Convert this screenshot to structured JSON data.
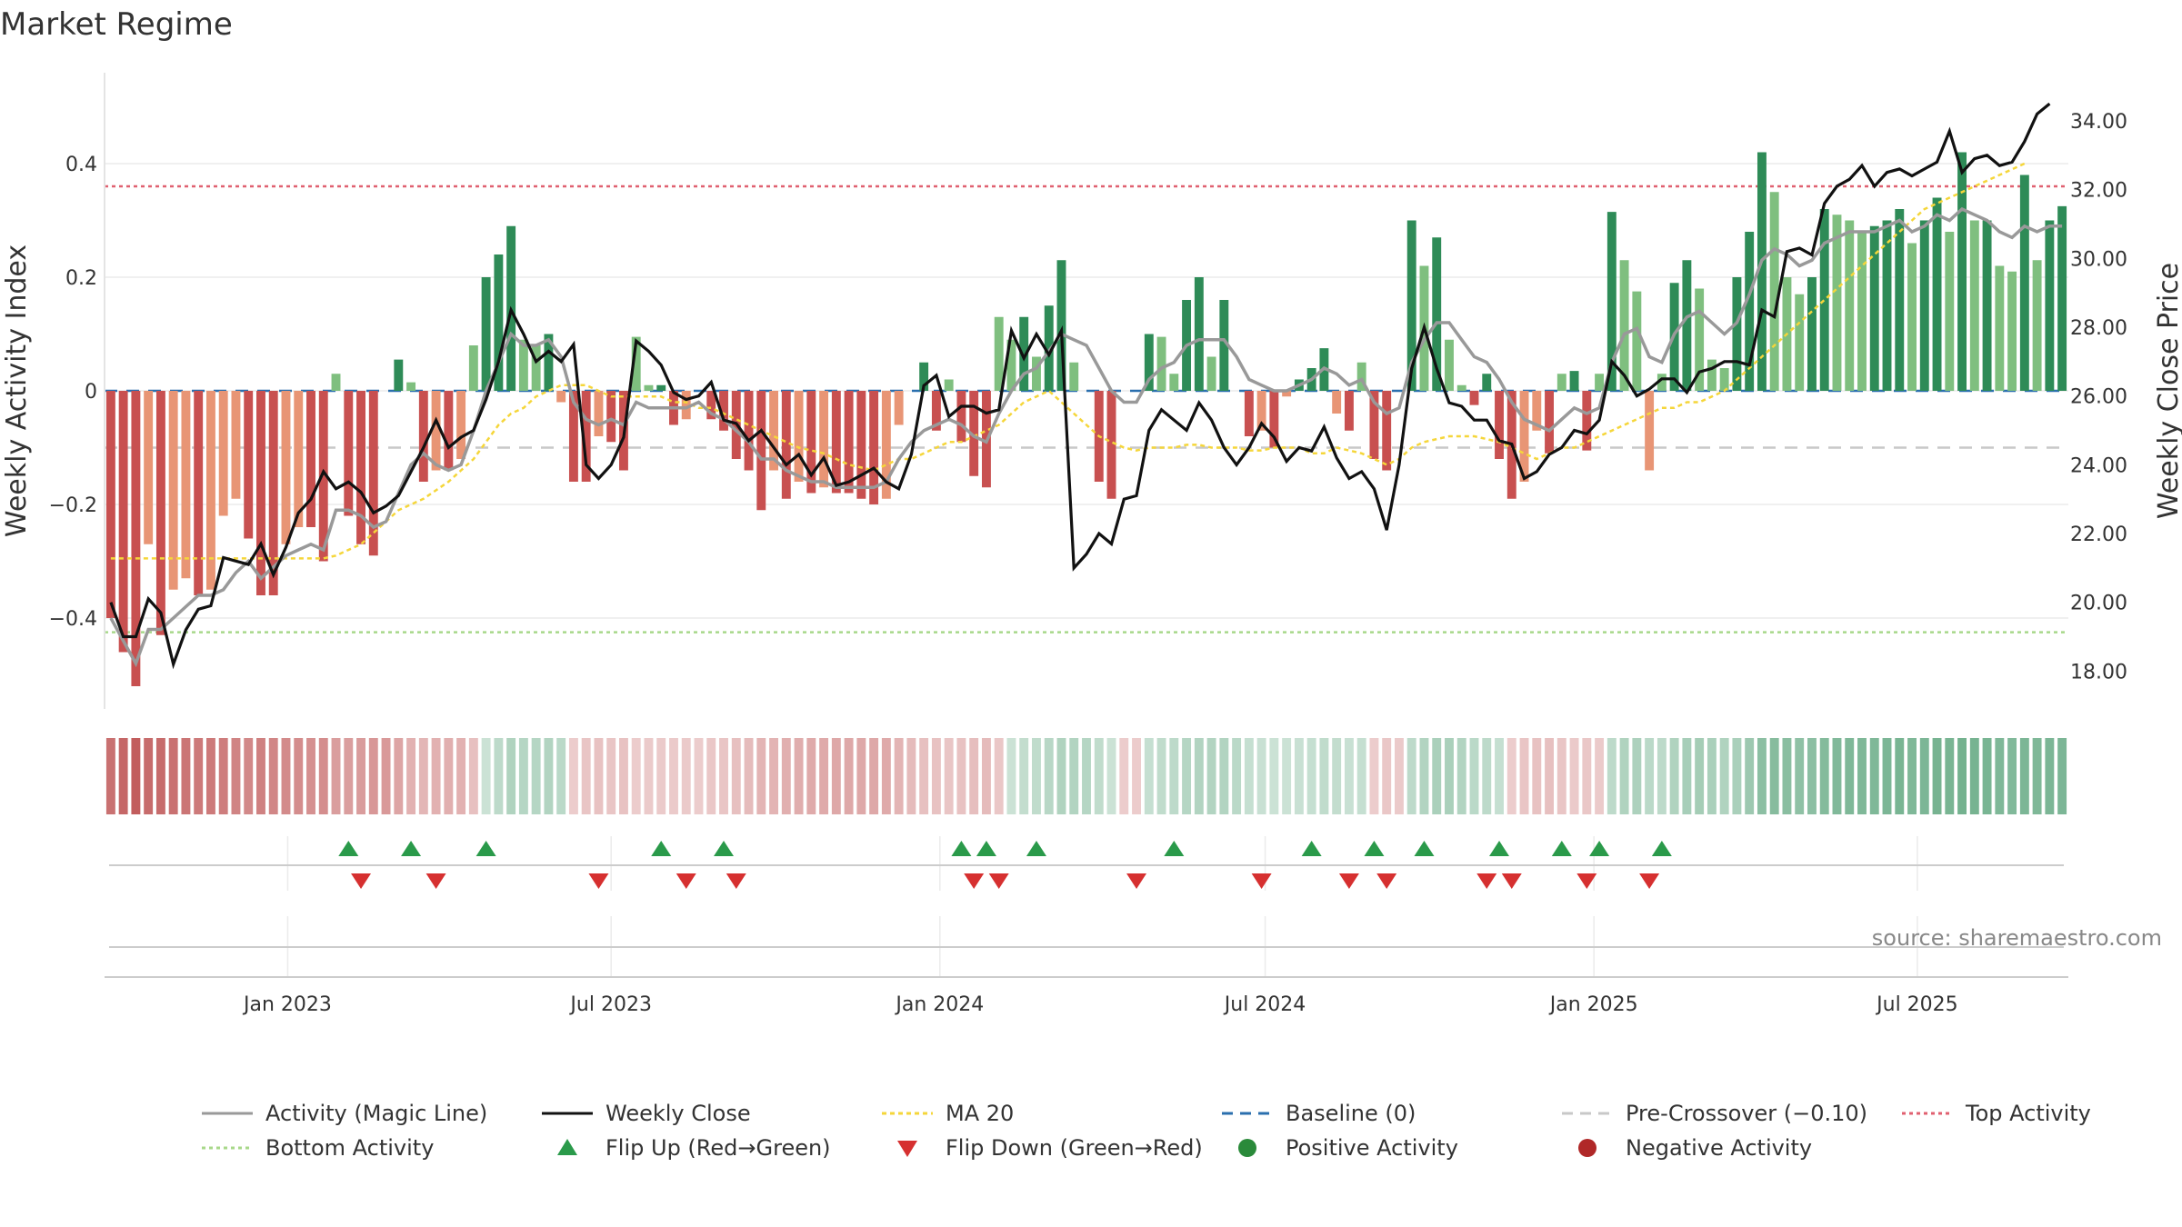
{
  "chart_data": {
    "type": "bar",
    "title": "Market Regime",
    "ylabel_left": "Weekly Activity Index",
    "ylabel_right": "Weekly Close Price",
    "source": "source: sharemaestro.com",
    "x_start": "2022-09-24",
    "x_step_days": 7,
    "ylim_left": [
      -0.56,
      0.56
    ],
    "ylim_right": [
      16.9,
      35.4
    ],
    "yticks_left": [
      {
        "value": 0.4,
        "label": "0.4"
      },
      {
        "value": 0.2,
        "label": "0.2"
      },
      {
        "value": 0,
        "label": "0"
      },
      {
        "value": -0.2,
        "label": "−0.2"
      },
      {
        "value": -0.4,
        "label": "−0.4"
      }
    ],
    "yticks_right": [
      {
        "value": 34,
        "label": "34.00"
      },
      {
        "value": 32,
        "label": "32.00"
      },
      {
        "value": 30,
        "label": "30.00"
      },
      {
        "value": 28,
        "label": "28.00"
      },
      {
        "value": 26,
        "label": "26.00"
      },
      {
        "value": 24,
        "label": "24.00"
      },
      {
        "value": 22,
        "label": "22.00"
      },
      {
        "value": 20,
        "label": "20.00"
      },
      {
        "value": 18,
        "label": "18.00"
      }
    ],
    "xticks": [
      {
        "date": "2023-01-01",
        "label": "Jan 2023"
      },
      {
        "date": "2023-07-01",
        "label": "Jul 2023"
      },
      {
        "date": "2024-01-01",
        "label": "Jan 2024"
      },
      {
        "date": "2024-07-01",
        "label": "Jul 2024"
      },
      {
        "date": "2025-01-01",
        "label": "Jan 2025"
      },
      {
        "date": "2025-07-01",
        "label": "Jul 2025"
      }
    ],
    "reference_lines": {
      "baseline": 0,
      "pre_crossover": -0.1,
      "top_activity": 0.36,
      "bottom_activity": -0.425
    },
    "activity_bars": [
      -0.4,
      -0.46,
      -0.52,
      -0.27,
      -0.43,
      -0.35,
      -0.33,
      -0.36,
      -0.35,
      -0.22,
      -0.19,
      -0.26,
      -0.36,
      -0.36,
      -0.27,
      -0.24,
      -0.24,
      -0.3,
      0.03,
      -0.22,
      -0.27,
      -0.29,
      0.0,
      0.055,
      0.015,
      -0.16,
      -0.14,
      -0.14,
      -0.12,
      0.08,
      0.2,
      0.24,
      0.29,
      0.09,
      0.08,
      0.1,
      -0.02,
      -0.16,
      -0.16,
      -0.08,
      -0.09,
      -0.14,
      0.095,
      0.01,
      0.01,
      -0.06,
      -0.05,
      0.0,
      -0.05,
      -0.07,
      -0.12,
      -0.14,
      -0.21,
      -0.14,
      -0.19,
      -0.16,
      -0.18,
      -0.17,
      -0.18,
      -0.18,
      -0.19,
      -0.2,
      -0.19,
      -0.06,
      0.0,
      0.05,
      -0.07,
      0.02,
      -0.09,
      -0.15,
      -0.17,
      0.13,
      0.09,
      0.13,
      0.06,
      0.15,
      0.23,
      0.05,
      0.0,
      -0.16,
      -0.19,
      0.0,
      0.0,
      0.1,
      0.095,
      0.03,
      0.16,
      0.2,
      0.06,
      0.16,
      0.0,
      -0.08,
      -0.07,
      -0.1,
      -0.01,
      0.02,
      0.04,
      0.075,
      -0.04,
      -0.07,
      0.05,
      -0.12,
      -0.14,
      0.0,
      0.3,
      0.22,
      0.27,
      0.09,
      0.01,
      -0.025,
      0.03,
      -0.12,
      -0.19,
      -0.16,
      -0.07,
      -0.11,
      0.03,
      0.035,
      -0.105,
      0.03,
      0.315,
      0.23,
      0.175,
      -0.14,
      0.03,
      0.19,
      0.23,
      0.18,
      0.055,
      0.04,
      0.2,
      0.28,
      0.42,
      0.35,
      0.2,
      0.17,
      0.2,
      0.32,
      0.31,
      0.3,
      0.28,
      0.29,
      0.3,
      0.32,
      0.26,
      0.3,
      0.34,
      0.28,
      0.42,
      0.3,
      0.3,
      0.22,
      0.21,
      0.38,
      0.23,
      0.3,
      0.325
    ],
    "magic_line": [
      -0.4,
      -0.44,
      -0.48,
      -0.42,
      -0.42,
      -0.4,
      -0.38,
      -0.36,
      -0.36,
      -0.35,
      -0.32,
      -0.3,
      -0.33,
      -0.31,
      -0.29,
      -0.28,
      -0.27,
      -0.28,
      -0.21,
      -0.21,
      -0.22,
      -0.24,
      -0.23,
      -0.18,
      -0.13,
      -0.11,
      -0.13,
      -0.14,
      -0.13,
      -0.07,
      0.0,
      0.05,
      0.1,
      0.08,
      0.08,
      0.09,
      0.06,
      -0.02,
      -0.05,
      -0.06,
      -0.05,
      -0.06,
      -0.02,
      -0.03,
      -0.03,
      -0.03,
      -0.03,
      -0.02,
      -0.04,
      -0.05,
      -0.07,
      -0.09,
      -0.12,
      -0.12,
      -0.14,
      -0.15,
      -0.16,
      -0.16,
      -0.17,
      -0.17,
      -0.17,
      -0.17,
      -0.16,
      -0.12,
      -0.09,
      -0.07,
      -0.06,
      -0.05,
      -0.06,
      -0.08,
      -0.09,
      -0.04,
      0.0,
      0.03,
      0.04,
      0.07,
      0.1,
      0.09,
      0.08,
      0.04,
      0.0,
      -0.02,
      -0.02,
      0.02,
      0.04,
      0.05,
      0.08,
      0.09,
      0.09,
      0.09,
      0.06,
      0.02,
      0.01,
      0.0,
      0.0,
      0.01,
      0.02,
      0.04,
      0.03,
      0.01,
      0.02,
      -0.02,
      -0.04,
      -0.03,
      0.05,
      0.09,
      0.12,
      0.12,
      0.09,
      0.06,
      0.05,
      0.02,
      -0.02,
      -0.05,
      -0.06,
      -0.07,
      -0.05,
      -0.03,
      -0.04,
      -0.03,
      0.05,
      0.1,
      0.11,
      0.06,
      0.05,
      0.1,
      0.13,
      0.14,
      0.12,
      0.1,
      0.12,
      0.17,
      0.23,
      0.25,
      0.24,
      0.22,
      0.23,
      0.26,
      0.27,
      0.28,
      0.28,
      0.28,
      0.29,
      0.3,
      0.28,
      0.29,
      0.31,
      0.3,
      0.32,
      0.31,
      0.3,
      0.28,
      0.27,
      0.29,
      0.28,
      0.29,
      0.29
    ],
    "weekly_close": [
      20.0,
      19.0,
      19.0,
      20.1,
      19.7,
      18.2,
      19.2,
      19.8,
      19.9,
      21.3,
      21.2,
      21.1,
      21.7,
      20.8,
      21.6,
      22.6,
      23.0,
      23.8,
      23.3,
      23.5,
      23.2,
      22.6,
      22.8,
      23.1,
      23.8,
      24.5,
      25.3,
      24.5,
      24.8,
      25.0,
      25.9,
      27.0,
      28.5,
      27.8,
      27.0,
      27.3,
      27.0,
      27.5,
      24.0,
      23.6,
      24.0,
      24.8,
      27.6,
      27.3,
      26.9,
      26.1,
      25.9,
      26.0,
      26.4,
      25.3,
      25.2,
      24.7,
      25.0,
      24.5,
      24.0,
      24.3,
      23.7,
      24.2,
      23.4,
      23.5,
      23.7,
      23.9,
      23.5,
      23.3,
      24.3,
      26.3,
      26.6,
      25.4,
      25.7,
      25.7,
      25.5,
      25.6,
      27.9,
      27.1,
      27.8,
      27.2,
      27.9,
      21.0,
      21.4,
      22.0,
      21.7,
      23.0,
      23.1,
      25.0,
      25.6,
      25.3,
      25.0,
      25.8,
      25.3,
      24.5,
      24.0,
      24.5,
      25.2,
      24.8,
      24.1,
      24.5,
      24.4,
      25.1,
      24.2,
      23.6,
      23.8,
      23.3,
      22.1,
      24.0,
      26.8,
      28.0,
      26.8,
      25.8,
      25.7,
      25.3,
      25.3,
      24.7,
      24.6,
      23.6,
      23.8,
      24.3,
      24.5,
      25.0,
      24.9,
      25.3,
      27.0,
      26.6,
      26.0,
      26.2,
      26.5,
      26.5,
      26.1,
      26.7,
      26.8,
      27.0,
      27.0,
      26.9,
      28.5,
      28.3,
      30.2,
      30.3,
      30.1,
      31.6,
      32.1,
      32.3,
      32.7,
      32.1,
      32.5,
      32.6,
      32.4,
      32.6,
      32.8,
      33.7,
      32.5,
      32.9,
      33.0,
      32.7,
      32.8,
      33.4,
      34.2,
      34.5
    ],
    "ma20": [
      -0.295,
      -0.295,
      -0.295,
      -0.295,
      -0.295,
      -0.295,
      -0.295,
      -0.295,
      -0.295,
      -0.295,
      -0.295,
      -0.295,
      -0.295,
      -0.295,
      -0.295,
      -0.295,
      -0.295,
      -0.295,
      -0.29,
      -0.28,
      -0.27,
      -0.25,
      -0.23,
      -0.21,
      -0.2,
      -0.19,
      -0.175,
      -0.16,
      -0.14,
      -0.12,
      -0.09,
      -0.06,
      -0.04,
      -0.03,
      -0.01,
      0.0,
      0.01,
      0.01,
      0.01,
      0.0,
      -0.01,
      -0.01,
      -0.01,
      -0.01,
      -0.01,
      -0.02,
      -0.02,
      -0.03,
      -0.03,
      -0.04,
      -0.05,
      -0.06,
      -0.07,
      -0.08,
      -0.09,
      -0.1,
      -0.105,
      -0.11,
      -0.12,
      -0.13,
      -0.135,
      -0.14,
      -0.13,
      -0.12,
      -0.12,
      -0.11,
      -0.1,
      -0.09,
      -0.09,
      -0.08,
      -0.07,
      -0.06,
      -0.04,
      -0.02,
      -0.01,
      0.0,
      -0.02,
      -0.04,
      -0.06,
      -0.08,
      -0.09,
      -0.1,
      -0.105,
      -0.1,
      -0.1,
      -0.1,
      -0.095,
      -0.095,
      -0.1,
      -0.1,
      -0.1,
      -0.105,
      -0.105,
      -0.1,
      -0.1,
      -0.1,
      -0.11,
      -0.11,
      -0.1,
      -0.105,
      -0.11,
      -0.12,
      -0.13,
      -0.12,
      -0.1,
      -0.09,
      -0.085,
      -0.08,
      -0.08,
      -0.08,
      -0.085,
      -0.09,
      -0.1,
      -0.11,
      -0.12,
      -0.11,
      -0.1,
      -0.1,
      -0.09,
      -0.08,
      -0.07,
      -0.06,
      -0.05,
      -0.04,
      -0.03,
      -0.03,
      -0.02,
      -0.02,
      -0.01,
      0.0,
      0.02,
      0.04,
      0.06,
      0.08,
      0.1,
      0.12,
      0.14,
      0.16,
      0.18,
      0.2,
      0.22,
      0.24,
      0.26,
      0.28,
      0.3,
      0.32,
      0.33,
      0.34,
      0.35,
      0.36,
      0.37,
      0.38,
      0.39,
      0.4
    ],
    "flip_up_weeks": [
      19,
      24,
      30,
      44,
      49,
      68,
      70,
      74,
      85,
      96,
      101,
      105,
      111,
      116,
      119,
      124
    ],
    "flip_down_weeks": [
      20,
      26,
      39,
      46,
      50,
      69,
      71,
      82,
      92,
      99,
      102,
      110,
      112,
      118,
      123
    ],
    "legend": [
      {
        "label": "Activity (Magic Line)",
        "symbol": "line",
        "color": "#999999",
        "dash": ""
      },
      {
        "label": "Weekly Close",
        "symbol": "line",
        "color": "#111111",
        "dash": ""
      },
      {
        "label": "MA 20",
        "symbol": "line",
        "color": "#f5d63a",
        "dash": "5,4"
      },
      {
        "label": "Baseline (0)",
        "symbol": "line",
        "color": "#2a6fae",
        "dash": "12,8"
      },
      {
        "label": "Pre-Crossover (−0.10)",
        "symbol": "line",
        "color": "#c8c8c8",
        "dash": "12,8"
      },
      {
        "label": "Top Activity",
        "symbol": "line",
        "color": "#e06070",
        "dash": "4,4"
      },
      {
        "label": "Bottom Activity",
        "symbol": "line",
        "color": "#a8d88a",
        "dash": "4,4"
      },
      {
        "label": "Flip Up (Red→Green)",
        "symbol": "up-triangle",
        "color": "#2a9a4a",
        "dash": ""
      },
      {
        "label": "Flip Down (Green→Red)",
        "symbol": "down-triangle",
        "color": "#d63030",
        "dash": ""
      },
      {
        "label": "Positive Activity",
        "symbol": "circle",
        "color": "#2a8a3a",
        "dash": ""
      },
      {
        "label": "Negative Activity",
        "symbol": "circle",
        "color": "#b02828",
        "dash": ""
      }
    ],
    "colors": {
      "pos_strong": "#2e8b57",
      "pos_light": "#7fbf7f",
      "neg_strong": "#c85050",
      "neg_light": "#e89575",
      "close": "#111111",
      "magic": "#999999",
      "ma20": "#f5d63a",
      "baseline": "#2a6fae",
      "pre_crossover": "#c8c8c8",
      "top": "#e06070",
      "bottom": "#a8d88a",
      "flip_up": "#2a9a4a",
      "flip_down": "#d63030"
    }
  }
}
